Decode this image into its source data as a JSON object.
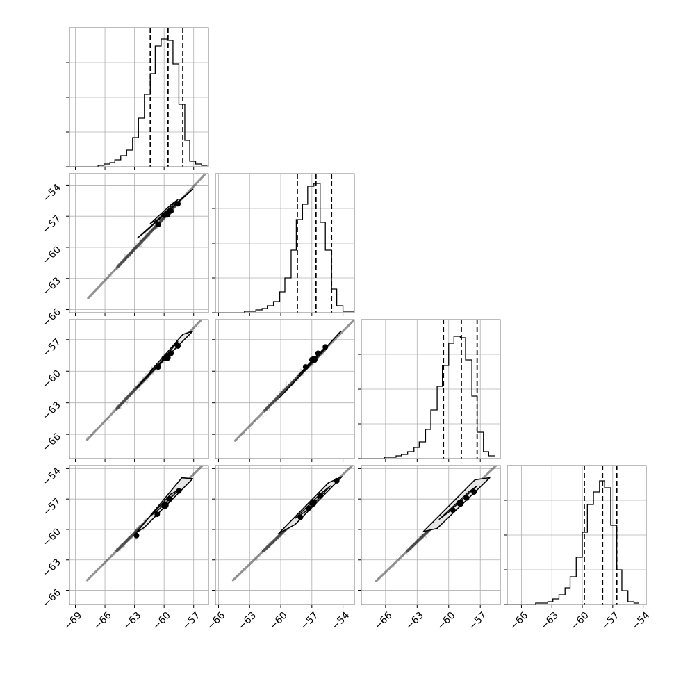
{
  "chart_data": {
    "type": "corner",
    "title": "",
    "n_params": 4,
    "grid": true,
    "histogram_yticks": [
      [
        0.25,
        0.5,
        0.75
      ],
      [
        0.25,
        0.5,
        0.75
      ],
      [
        0.25,
        0.5,
        0.75
      ],
      [
        0.25,
        0.5,
        0.75
      ]
    ],
    "params": [
      {
        "index": 0,
        "range": [
          -69.6,
          -55.5
        ],
        "xticks": [
          -69,
          -66,
          -63,
          -60,
          -57
        ],
        "xtick_labels": [
          "−69",
          "−66",
          "−63",
          "−60",
          "−57"
        ],
        "yticks": [],
        "ytick_labels": [],
        "quantiles": [
          -61.4,
          -59.6,
          -58.1
        ],
        "hist_x": [
          -69.6,
          -69.0,
          -68.5,
          -67.9,
          -67.3,
          -66.7,
          -66.1,
          -65.5,
          -65.0,
          -64.4,
          -63.8,
          -63.2,
          -62.6,
          -62.0,
          -61.4,
          -60.9,
          -60.3,
          -59.7,
          -59.1,
          -58.5,
          -57.9,
          -57.4,
          -56.8,
          -56.2,
          -55.6
        ],
        "hist_counts": [
          0,
          0,
          0,
          0,
          0,
          0.01,
          0.02,
          0.03,
          0.05,
          0.08,
          0.12,
          0.21,
          0.35,
          0.52,
          0.67,
          0.87,
          0.92,
          0.91,
          0.74,
          0.45,
          0.19,
          0.04,
          0.02,
          0.01
        ]
      },
      {
        "index": 1,
        "range": [
          -66.3,
          -52.9
        ],
        "xticks": [
          -66,
          -63,
          -60,
          -57,
          -54
        ],
        "xtick_labels": [
          "−66",
          "−63",
          "−60",
          "−57",
          "−54"
        ],
        "yticks": [
          -66,
          -63,
          -60,
          -57,
          -54
        ],
        "ytick_labels": [
          "−66",
          "−63",
          "−60",
          "−57",
          "−54"
        ],
        "quantiles": [
          -58.4,
          -56.6,
          -55.1
        ],
        "hist_x": [
          -66.3,
          -65.7,
          -65.2,
          -64.6,
          -64.1,
          -63.5,
          -62.9,
          -62.4,
          -61.8,
          -61.3,
          -60.7,
          -60.1,
          -59.6,
          -59.0,
          -58.5,
          -57.9,
          -57.4,
          -56.8,
          -56.2,
          -55.7,
          -55.1,
          -54.6,
          -54.0,
          -53.4,
          -52.9
        ],
        "hist_counts": [
          0,
          0,
          0,
          0,
          0,
          0.01,
          0.01,
          0.02,
          0.03,
          0.05,
          0.08,
          0.15,
          0.25,
          0.45,
          0.67,
          0.78,
          0.91,
          0.93,
          0.65,
          0.45,
          0.17,
          0.05,
          0.01,
          0.01
        ]
      },
      {
        "index": 2,
        "range": [
          -68.3,
          -55.1
        ],
        "xticks": [
          -66,
          -63,
          -60,
          -57
        ],
        "xtick_labels": [
          "−66",
          "−63",
          "−60",
          "−57"
        ],
        "yticks": [
          -66,
          -63,
          -60,
          -57
        ],
        "ytick_labels": [
          "−66",
          "−63",
          "−60",
          "−57"
        ],
        "quantiles": [
          -60.5,
          -58.8,
          -57.3
        ],
        "hist_x": [
          -68.3,
          -67.8,
          -67.2,
          -66.7,
          -66.1,
          -65.6,
          -65.0,
          -64.5,
          -63.9,
          -63.3,
          -62.8,
          -62.2,
          -61.7,
          -61.1,
          -60.6,
          -60.0,
          -59.5,
          -58.9,
          -58.4,
          -57.8,
          -57.3,
          -56.7,
          -56.2,
          -55.6,
          -55.1
        ],
        "hist_counts": [
          0,
          0,
          0,
          0,
          0.01,
          0.01,
          0.02,
          0.03,
          0.05,
          0.08,
          0.12,
          0.21,
          0.35,
          0.52,
          0.67,
          0.83,
          0.88,
          0.87,
          0.71,
          0.45,
          0.19,
          0.05,
          0.02
        ]
      },
      {
        "index": 3,
        "range": [
          -67.4,
          -53.7
        ],
        "xticks": [
          -66,
          -63,
          -60,
          -57,
          -54
        ],
        "xtick_labels": [
          "−66",
          "−63",
          "−60",
          "−57",
          "−54"
        ],
        "yticks": [
          -66,
          -63,
          -60,
          -57,
          -54
        ],
        "ytick_labels": [
          "−66",
          "−63",
          "−60",
          "−57",
          "−54"
        ],
        "quantiles": [
          -59.8,
          -58.0,
          -56.6
        ],
        "hist_x": [
          -67.4,
          -66.8,
          -66.3,
          -65.7,
          -65.1,
          -64.6,
          -64.0,
          -63.4,
          -62.9,
          -62.3,
          -61.7,
          -61.2,
          -60.6,
          -60.0,
          -59.5,
          -58.9,
          -58.3,
          -57.8,
          -57.2,
          -56.6,
          -56.1,
          -55.5,
          -54.9,
          -54.4,
          -53.8
        ],
        "hist_counts": [
          0,
          0,
          0,
          0,
          0,
          0.01,
          0.01,
          0.02,
          0.04,
          0.07,
          0.12,
          0.2,
          0.34,
          0.52,
          0.72,
          0.81,
          0.89,
          0.84,
          0.57,
          0.25,
          0.1,
          0.02,
          0.01
        ]
      }
    ],
    "pair_panels": [
      {
        "row": 1,
        "col": 0,
        "line": {
          "x": [
            -67.7,
            -55.7
          ],
          "y": [
            -64.9,
            -52.8
          ]
        },
        "contour_outer": [
          [
            -62.7,
            -59.1
          ],
          [
            -58.1,
            -55.2
          ],
          [
            -57.1,
            -54.4
          ],
          [
            -61.9,
            -58.5
          ]
        ],
        "contour_inner": [
          [
            -61.4,
            -57.7
          ],
          [
            -59.2,
            -55.8
          ],
          [
            -58.6,
            -55.4
          ],
          [
            -60.6,
            -57.3
          ]
        ],
        "center": [
          -59.7,
          -56.8
        ],
        "dots": [
          [
            -60.6,
            -57.8
          ],
          [
            -60.0,
            -56.9
          ],
          [
            -59.3,
            -56.5
          ],
          [
            -58.6,
            -55.8
          ]
        ]
      },
      {
        "row": 2,
        "col": 0,
        "line": {
          "x": [
            -67.8,
            -55.7
          ],
          "y": [
            -66.5,
            -54.6
          ]
        },
        "contour_outer": [
          [
            -62.8,
            -61.6
          ],
          [
            -58.1,
            -56.5
          ],
          [
            -57.1,
            -56.2
          ],
          [
            -61.8,
            -60.6
          ]
        ],
        "contour_inner": [
          [
            -61.4,
            -60.0
          ],
          [
            -59.3,
            -57.8
          ],
          [
            -58.6,
            -57.2
          ],
          [
            -60.6,
            -59.4
          ]
        ],
        "center": [
          -59.7,
          -58.7
        ],
        "dots": [
          [
            -60.6,
            -59.6
          ],
          [
            -60.0,
            -58.8
          ],
          [
            -59.3,
            -58.3
          ],
          [
            -58.6,
            -57.6
          ]
        ]
      },
      {
        "row": 2,
        "col": 1,
        "line": {
          "x": [
            -64.4,
            -52.9
          ],
          "y": [
            -66.6,
            -55.1
          ]
        },
        "contour_outer": [
          [
            -60.1,
            -62.5
          ],
          [
            -55.3,
            -57.4
          ],
          [
            -54.2,
            -56.2
          ],
          [
            -58.3,
            -60.6
          ]
        ],
        "contour_inner": [
          [
            -58.3,
            -60.4
          ],
          [
            -56.4,
            -58.5
          ],
          [
            -55.7,
            -57.7
          ],
          [
            -57.6,
            -59.6
          ]
        ],
        "center": [
          -56.8,
          -58.9
        ],
        "dots": [
          [
            -57.6,
            -59.6
          ],
          [
            -57.0,
            -58.9
          ],
          [
            -56.4,
            -58.3
          ],
          [
            -55.7,
            -57.7
          ]
        ]
      },
      {
        "row": 3,
        "col": 0,
        "line": {
          "x": [
            -67.8,
            -55.7
          ],
          "y": [
            -65.0,
            -53.3
          ]
        },
        "contour_outer": [
          [
            -62.8,
            -60.3
          ],
          [
            -58.2,
            -54.9
          ],
          [
            -57.1,
            -55.0
          ],
          [
            -62.0,
            -59.8
          ]
        ],
        "contour_inner": [
          [
            -61.4,
            -58.7
          ],
          [
            -59.3,
            -56.5
          ],
          [
            -58.5,
            -56.1
          ],
          [
            -60.5,
            -58.0
          ]
        ],
        "center": [
          -59.9,
          -57.6
        ],
        "dots": [
          [
            -62.8,
            -60.6
          ],
          [
            -60.7,
            -58.5
          ],
          [
            -60.0,
            -57.7
          ],
          [
            -59.4,
            -57.0
          ],
          [
            -58.5,
            -56.2
          ]
        ]
      },
      {
        "row": 3,
        "col": 1,
        "line": {
          "x": [
            -64.6,
            -52.9
          ],
          "y": [
            -65.0,
            -53.5
          ]
        },
        "contour_outer": [
          [
            -60.2,
            -60.4
          ],
          [
            -55.4,
            -55.4
          ],
          [
            -54.1,
            -54.8
          ],
          [
            -58.6,
            -59.5
          ]
        ],
        "contour_inner": [
          [
            -58.6,
            -58.9
          ],
          [
            -56.2,
            -56.5
          ],
          [
            -55.2,
            -55.7
          ],
          [
            -57.4,
            -58.1
          ]
        ],
        "center": [
          -56.9,
          -57.4
        ],
        "dots": [
          [
            -58.1,
            -58.8
          ],
          [
            -57.3,
            -57.9
          ],
          [
            -56.8,
            -57.3
          ],
          [
            -56.2,
            -56.7
          ],
          [
            -54.6,
            -55.2
          ]
        ]
      },
      {
        "row": 3,
        "col": 2,
        "line": {
          "x": [
            -66.9,
            -55.1
          ],
          "y": [
            -65.1,
            -53.3
          ]
        },
        "contour_outer": [
          [
            -62.4,
            -60.2
          ],
          [
            -57.5,
            -55.1
          ],
          [
            -56.1,
            -54.9
          ],
          [
            -61.1,
            -59.9
          ]
        ],
        "contour_inner": [
          [
            -60.9,
            -59.0
          ],
          [
            -58.1,
            -56.3
          ],
          [
            -57.3,
            -55.7
          ],
          [
            -60.0,
            -58.3
          ]
        ],
        "center": [
          -58.9,
          -57.4
        ],
        "dots": [
          [
            -59.6,
            -58.1
          ],
          [
            -58.9,
            -57.4
          ],
          [
            -58.3,
            -56.9
          ],
          [
            -57.6,
            -56.3
          ]
        ]
      }
    ]
  }
}
